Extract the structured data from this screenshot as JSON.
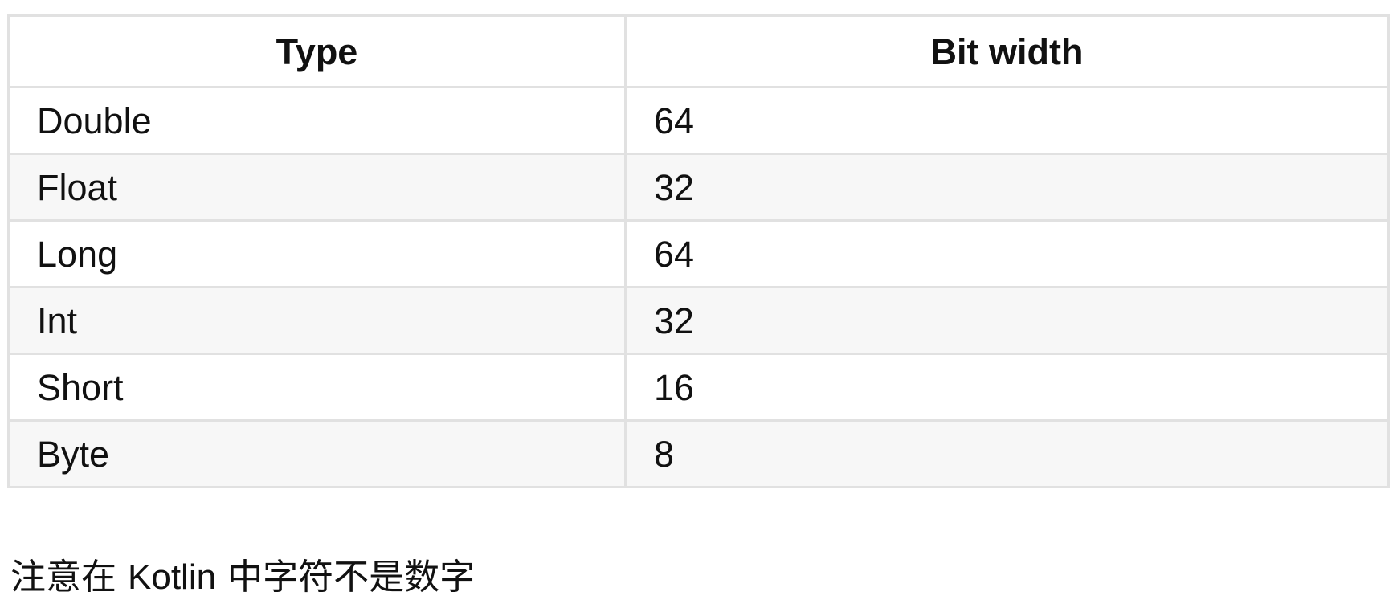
{
  "table": {
    "headers": [
      "Type",
      "Bit width"
    ],
    "rows": [
      [
        "Double",
        "64"
      ],
      [
        "Float",
        "32"
      ],
      [
        "Long",
        "64"
      ],
      [
        "Int",
        "32"
      ],
      [
        "Short",
        "16"
      ],
      [
        "Byte",
        "8"
      ]
    ]
  },
  "note": {
    "prefix": "注意在 ",
    "keyword": "Kotlin",
    "suffix": " 中字符不是数字"
  },
  "colors": {
    "border": "#e1e1e1",
    "stripe": "#f7f7f7",
    "text": "#111111"
  }
}
